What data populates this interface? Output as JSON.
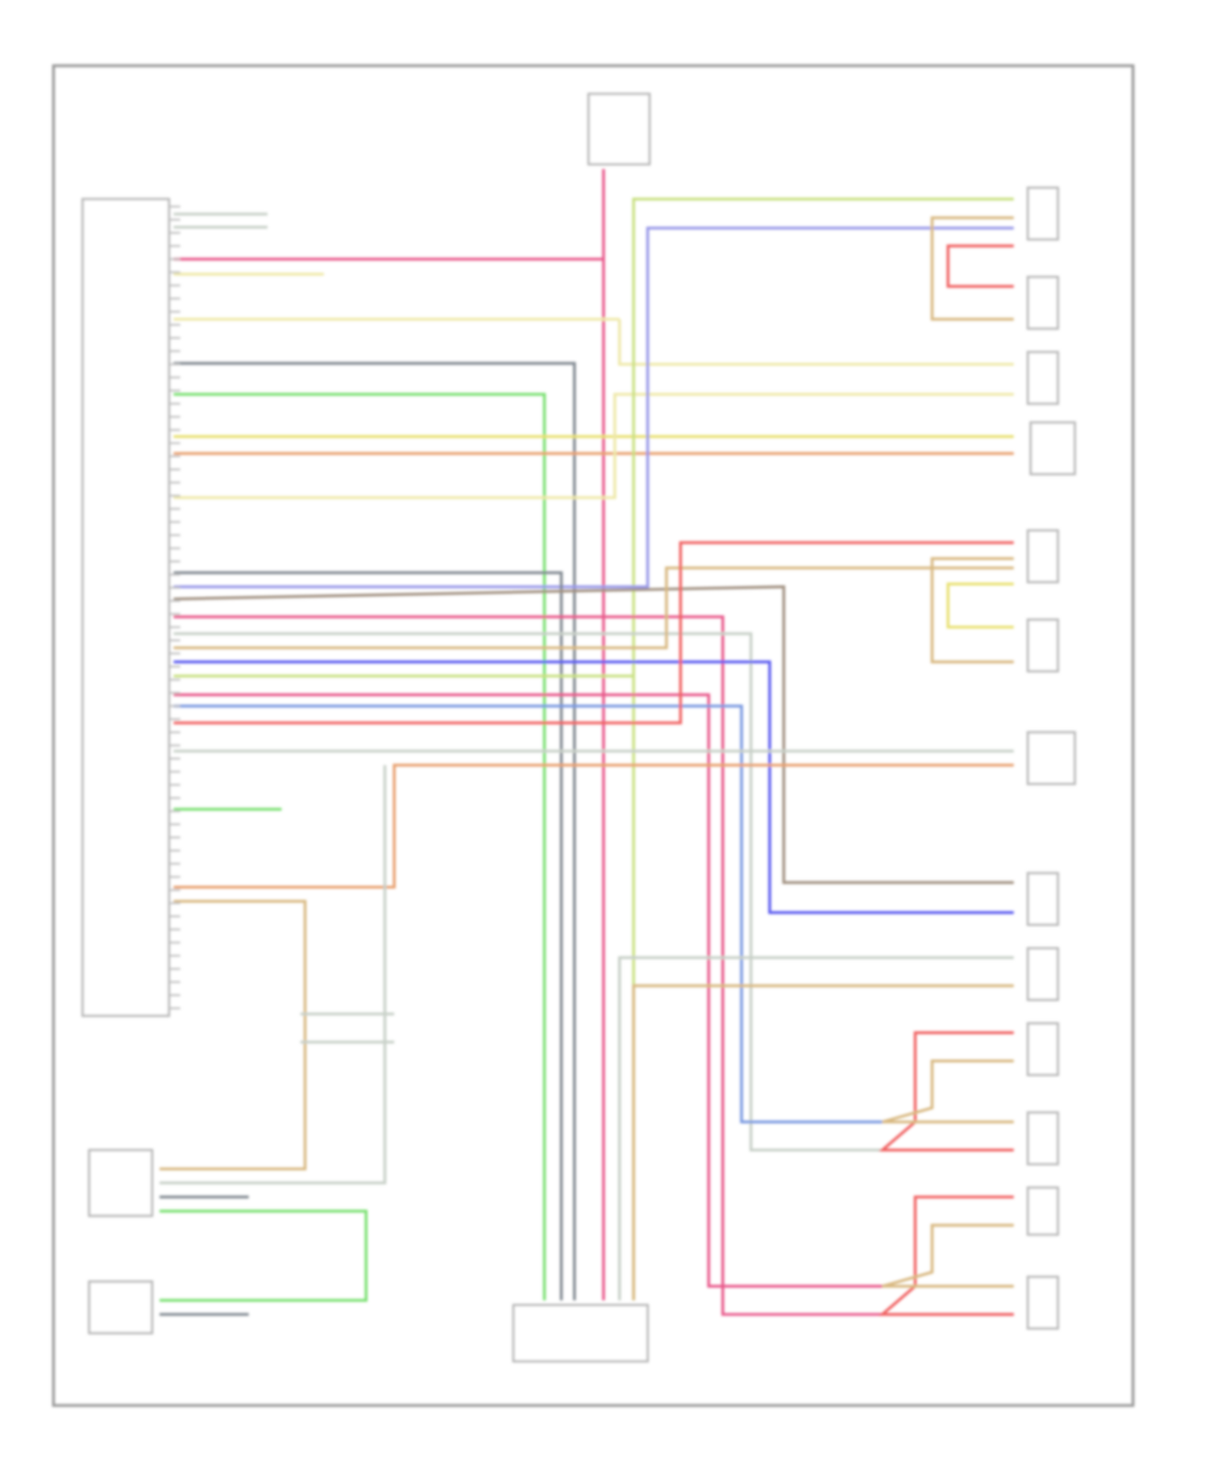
{
  "diagram": {
    "title": "",
    "frame_color": "#9a9a9a",
    "component_color": "#b8b8b8",
    "wire_colors": {
      "pink": "#e8588a",
      "yellow": "#e8e070",
      "light_yellow": "#eee8a8",
      "gray": "#808890",
      "green": "#78e070",
      "orange": "#e8a070",
      "red": "#f06060",
      "tan": "#d8b880",
      "blue": "#5858f0",
      "light_blue": "#7898e0",
      "lavender": "#9898e8",
      "yellow_green": "#c8e080",
      "gray_brown": "#a09080",
      "light_gray": "#c8d0c8"
    }
  }
}
